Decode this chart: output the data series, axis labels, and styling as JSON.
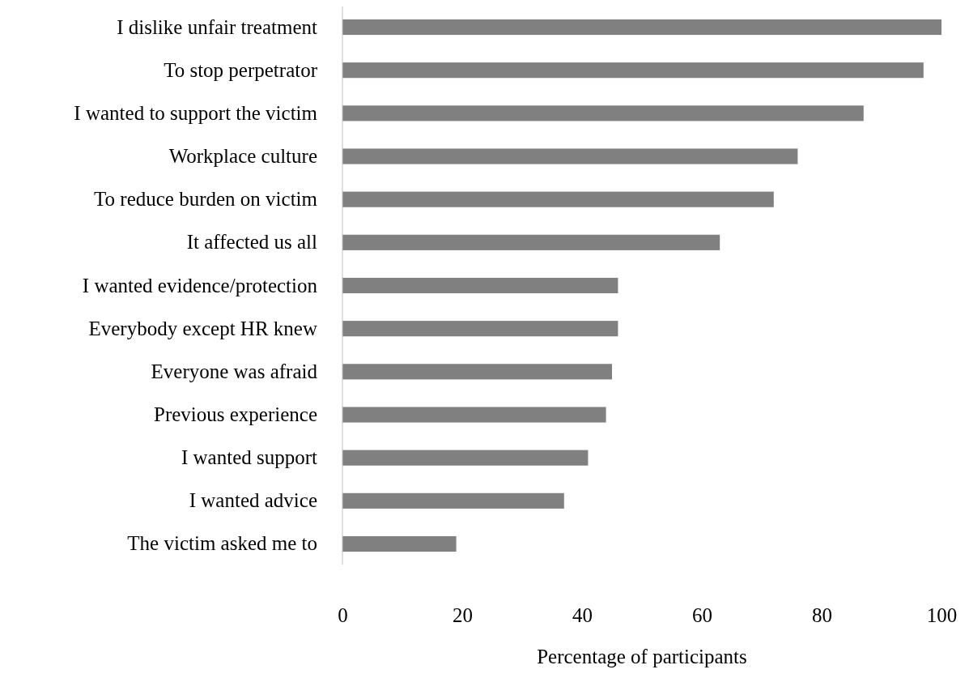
{
  "chart_data": {
    "type": "bar",
    "orientation": "horizontal",
    "xlabel": "Percentage of participants",
    "categories": [
      "I dislike unfair treatment",
      "To stop perpetrator",
      "I wanted to support the victim",
      "Workplace culture",
      "To reduce burden on victim",
      "It affected us all",
      "I wanted evidence/protection",
      "Everybody except HR knew",
      "Everyone was afraid",
      "Previous experience",
      "I wanted support",
      "I wanted advice",
      "The victim asked me to"
    ],
    "values": [
      100,
      97,
      87,
      76,
      72,
      63,
      46,
      46,
      45,
      44,
      41,
      37,
      19
    ],
    "color": "#808080",
    "xlim": [
      0,
      100
    ],
    "xticks": [
      0,
      20,
      40,
      60,
      80,
      100
    ],
    "grid": false
  }
}
